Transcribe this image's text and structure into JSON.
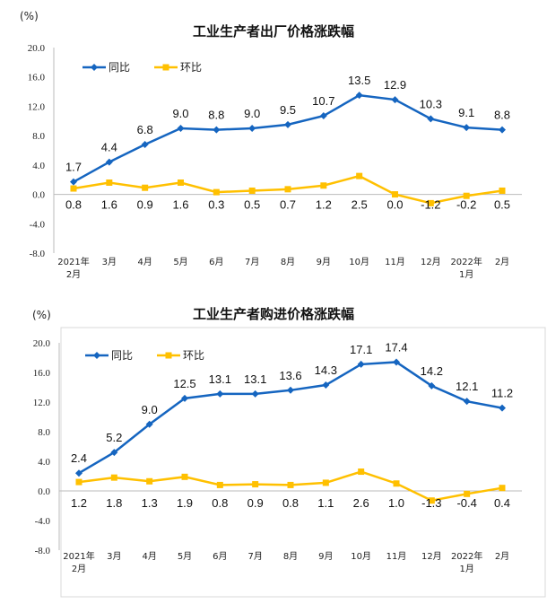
{
  "chart_data": [
    {
      "type": "line",
      "title": "工业生产者出厂价格涨跌幅",
      "ylabel": "(%)",
      "ylim": [
        -8,
        20
      ],
      "yticks": [
        "20.0",
        "16.0",
        "12.0",
        "8.0",
        "4.0",
        "0.0",
        "-4.0",
        "-8.0"
      ],
      "categories": [
        "2021年|2月",
        "3月",
        "4月",
        "5月",
        "6月",
        "7月",
        "8月",
        "9月",
        "10月",
        "11月",
        "12月",
        "2022年|1月",
        "2月"
      ],
      "series": [
        {
          "name": "同比",
          "color": "#1565C0",
          "marker": "diamond",
          "values": [
            1.7,
            4.4,
            6.8,
            9.0,
            8.8,
            9.0,
            9.5,
            10.7,
            13.5,
            12.9,
            10.3,
            9.1,
            8.8
          ],
          "labels": [
            "1.7",
            "4.4",
            "6.8",
            "9.0",
            "8.8",
            "9.0",
            "9.5",
            "10.7",
            "13.5",
            "12.9",
            "10.3",
            "9.1",
            "8.8"
          ]
        },
        {
          "name": "环比",
          "color": "#FFC000",
          "marker": "square",
          "values": [
            0.8,
            1.6,
            0.9,
            1.6,
            0.3,
            0.5,
            0.7,
            1.2,
            2.5,
            0.0,
            -1.2,
            -0.2,
            0.5
          ],
          "labels": [
            "0.8",
            "1.6",
            "0.9",
            "1.6",
            "0.3",
            "0.5",
            "0.7",
            "1.2",
            "2.5",
            "0.0",
            "-1.2",
            "-0.2",
            "0.5"
          ]
        }
      ],
      "legend": "top-left",
      "grid": false
    },
    {
      "type": "line",
      "title": "工业生产者购进价格涨跌幅",
      "ylabel": "(%)",
      "ylim": [
        -8,
        20
      ],
      "yticks": [
        "20.0",
        "16.0",
        "12.0",
        "8.0",
        "4.0",
        "0.0",
        "-4.0",
        "-8.0"
      ],
      "categories": [
        "2021年|2月",
        "3月",
        "4月",
        "5月",
        "6月",
        "7月",
        "8月",
        "9月",
        "10月",
        "11月",
        "12月",
        "2022年|1月",
        "2月"
      ],
      "series": [
        {
          "name": "同比",
          "color": "#1565C0",
          "marker": "diamond",
          "values": [
            2.4,
            5.2,
            9.0,
            12.5,
            13.1,
            13.1,
            13.6,
            14.3,
            17.1,
            17.4,
            14.2,
            12.1,
            11.2
          ],
          "labels": [
            "2.4",
            "5.2",
            "9.0",
            "12.5",
            "13.1",
            "13.1",
            "13.6",
            "14.3",
            "17.1",
            "17.4",
            "14.2",
            "12.1",
            "11.2"
          ]
        },
        {
          "name": "环比",
          "color": "#FFC000",
          "marker": "square",
          "values": [
            1.2,
            1.8,
            1.3,
            1.9,
            0.8,
            0.9,
            0.8,
            1.1,
            2.6,
            1.0,
            -1.3,
            -0.4,
            0.4
          ],
          "labels": [
            "1.2",
            "1.8",
            "1.3",
            "1.9",
            "0.8",
            "0.9",
            "0.8",
            "1.1",
            "2.6",
            "1.0",
            "-1.3",
            "-0.4",
            "0.4"
          ]
        }
      ],
      "legend": "top-left",
      "grid": false
    }
  ]
}
